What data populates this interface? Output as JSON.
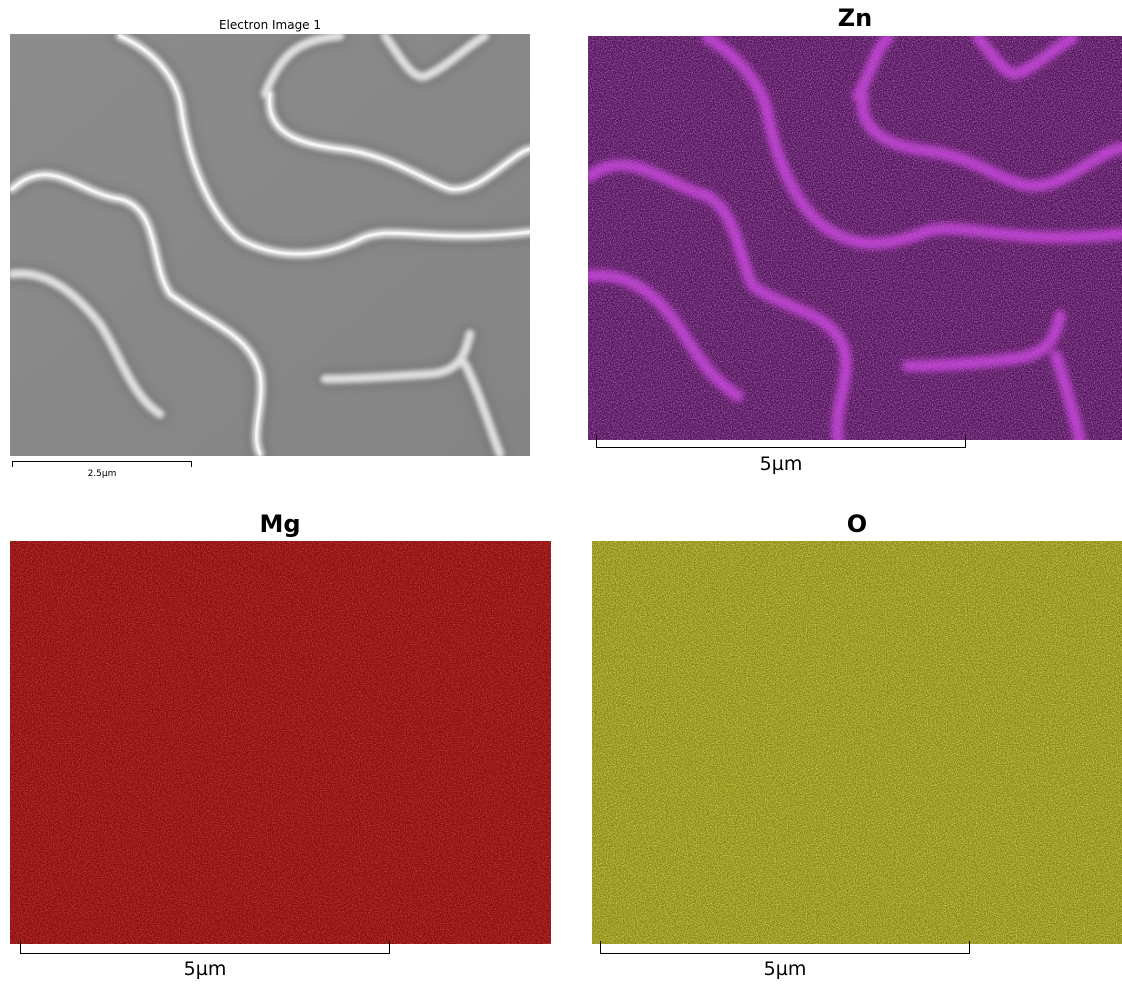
{
  "panels": {
    "electron": {
      "title": "Electron Image 1",
      "scale_label": "2.5µm",
      "colors": {
        "background": "#8a8a8a",
        "ridge": "#e2e2e2",
        "shadow": "#6e6e6e"
      }
    },
    "zn": {
      "title": "Zn",
      "scale_label": "5µm",
      "colors": {
        "background": "#5a1a64",
        "noise": "#b02cc2",
        "ridge": "#d64ee8"
      }
    },
    "mg": {
      "title": "Mg",
      "scale_label": "5µm",
      "colors": {
        "background": "#8e0d0d",
        "noise": "#c21414",
        "dark": "#3a0505"
      }
    },
    "o": {
      "title": "O",
      "scale_label": "5µm",
      "colors": {
        "background": "#8f8f16",
        "noise": "#dede2a",
        "dark": "#2a2a06"
      }
    }
  }
}
